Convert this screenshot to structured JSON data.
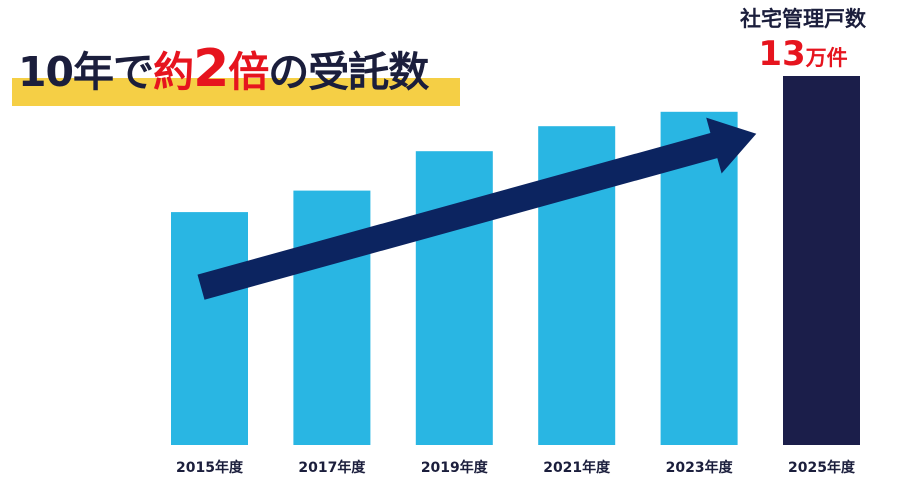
{
  "title": {
    "prefix": "10年で",
    "accent_1": "約",
    "accent_2": "2",
    "accent_3": "倍",
    "suffix": "の受託数"
  },
  "callout": {
    "label": "社宅管理戸数",
    "value": "13",
    "unit": "万件"
  },
  "colors": {
    "bar": "#29b6e3",
    "bar_highlight": "#1b1e4a",
    "arrow": "#0c2460",
    "title_accent": "#e6141e",
    "title_highlight": "#f5cf45",
    "text": "#1b1e3c"
  },
  "chart_data": {
    "type": "bar",
    "categories": [
      "2015年度",
      "2017年度",
      "2019年度",
      "2021年度",
      "2023年度",
      "2025年度"
    ],
    "values": [
      6.5,
      7.1,
      8.2,
      8.9,
      9.3,
      10.3
    ],
    "highlight_index": 5,
    "ylim": [
      0,
      10.3
    ],
    "xlabel": "",
    "ylabel": "",
    "grid": false,
    "trend_arrow": true,
    "value_units": "relative, estimated"
  }
}
